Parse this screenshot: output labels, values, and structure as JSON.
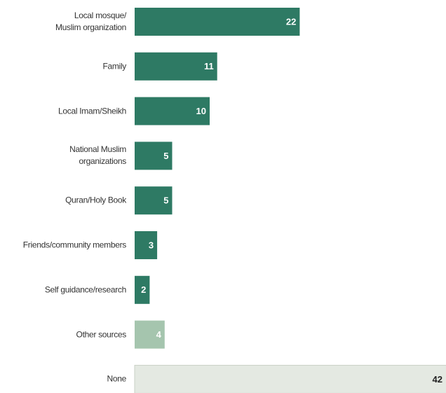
{
  "chart_data": {
    "type": "bar",
    "orientation": "horizontal",
    "categories": [
      "Local mosque/\nMuslim organization",
      "Family",
      "Local Imam/Sheikh",
      "National Muslim\norganizations",
      "Quran/Holy Book",
      "Friends/community members",
      "Self guidance/research",
      "Other sources",
      "None"
    ],
    "values": [
      22,
      11,
      10,
      5,
      5,
      3,
      2,
      4,
      42
    ],
    "colors": [
      "#2e7a64",
      "#2e7a64",
      "#2e7a64",
      "#2e7a64",
      "#2e7a64",
      "#2e7a64",
      "#2e7a64",
      "#a5c5ae",
      "#e4e9e2"
    ],
    "label_colors": [
      "#ffffff",
      "#ffffff",
      "#ffffff",
      "#ffffff",
      "#ffffff",
      "#ffffff",
      "#ffffff",
      "#ffffff",
      "#222222"
    ]
  }
}
